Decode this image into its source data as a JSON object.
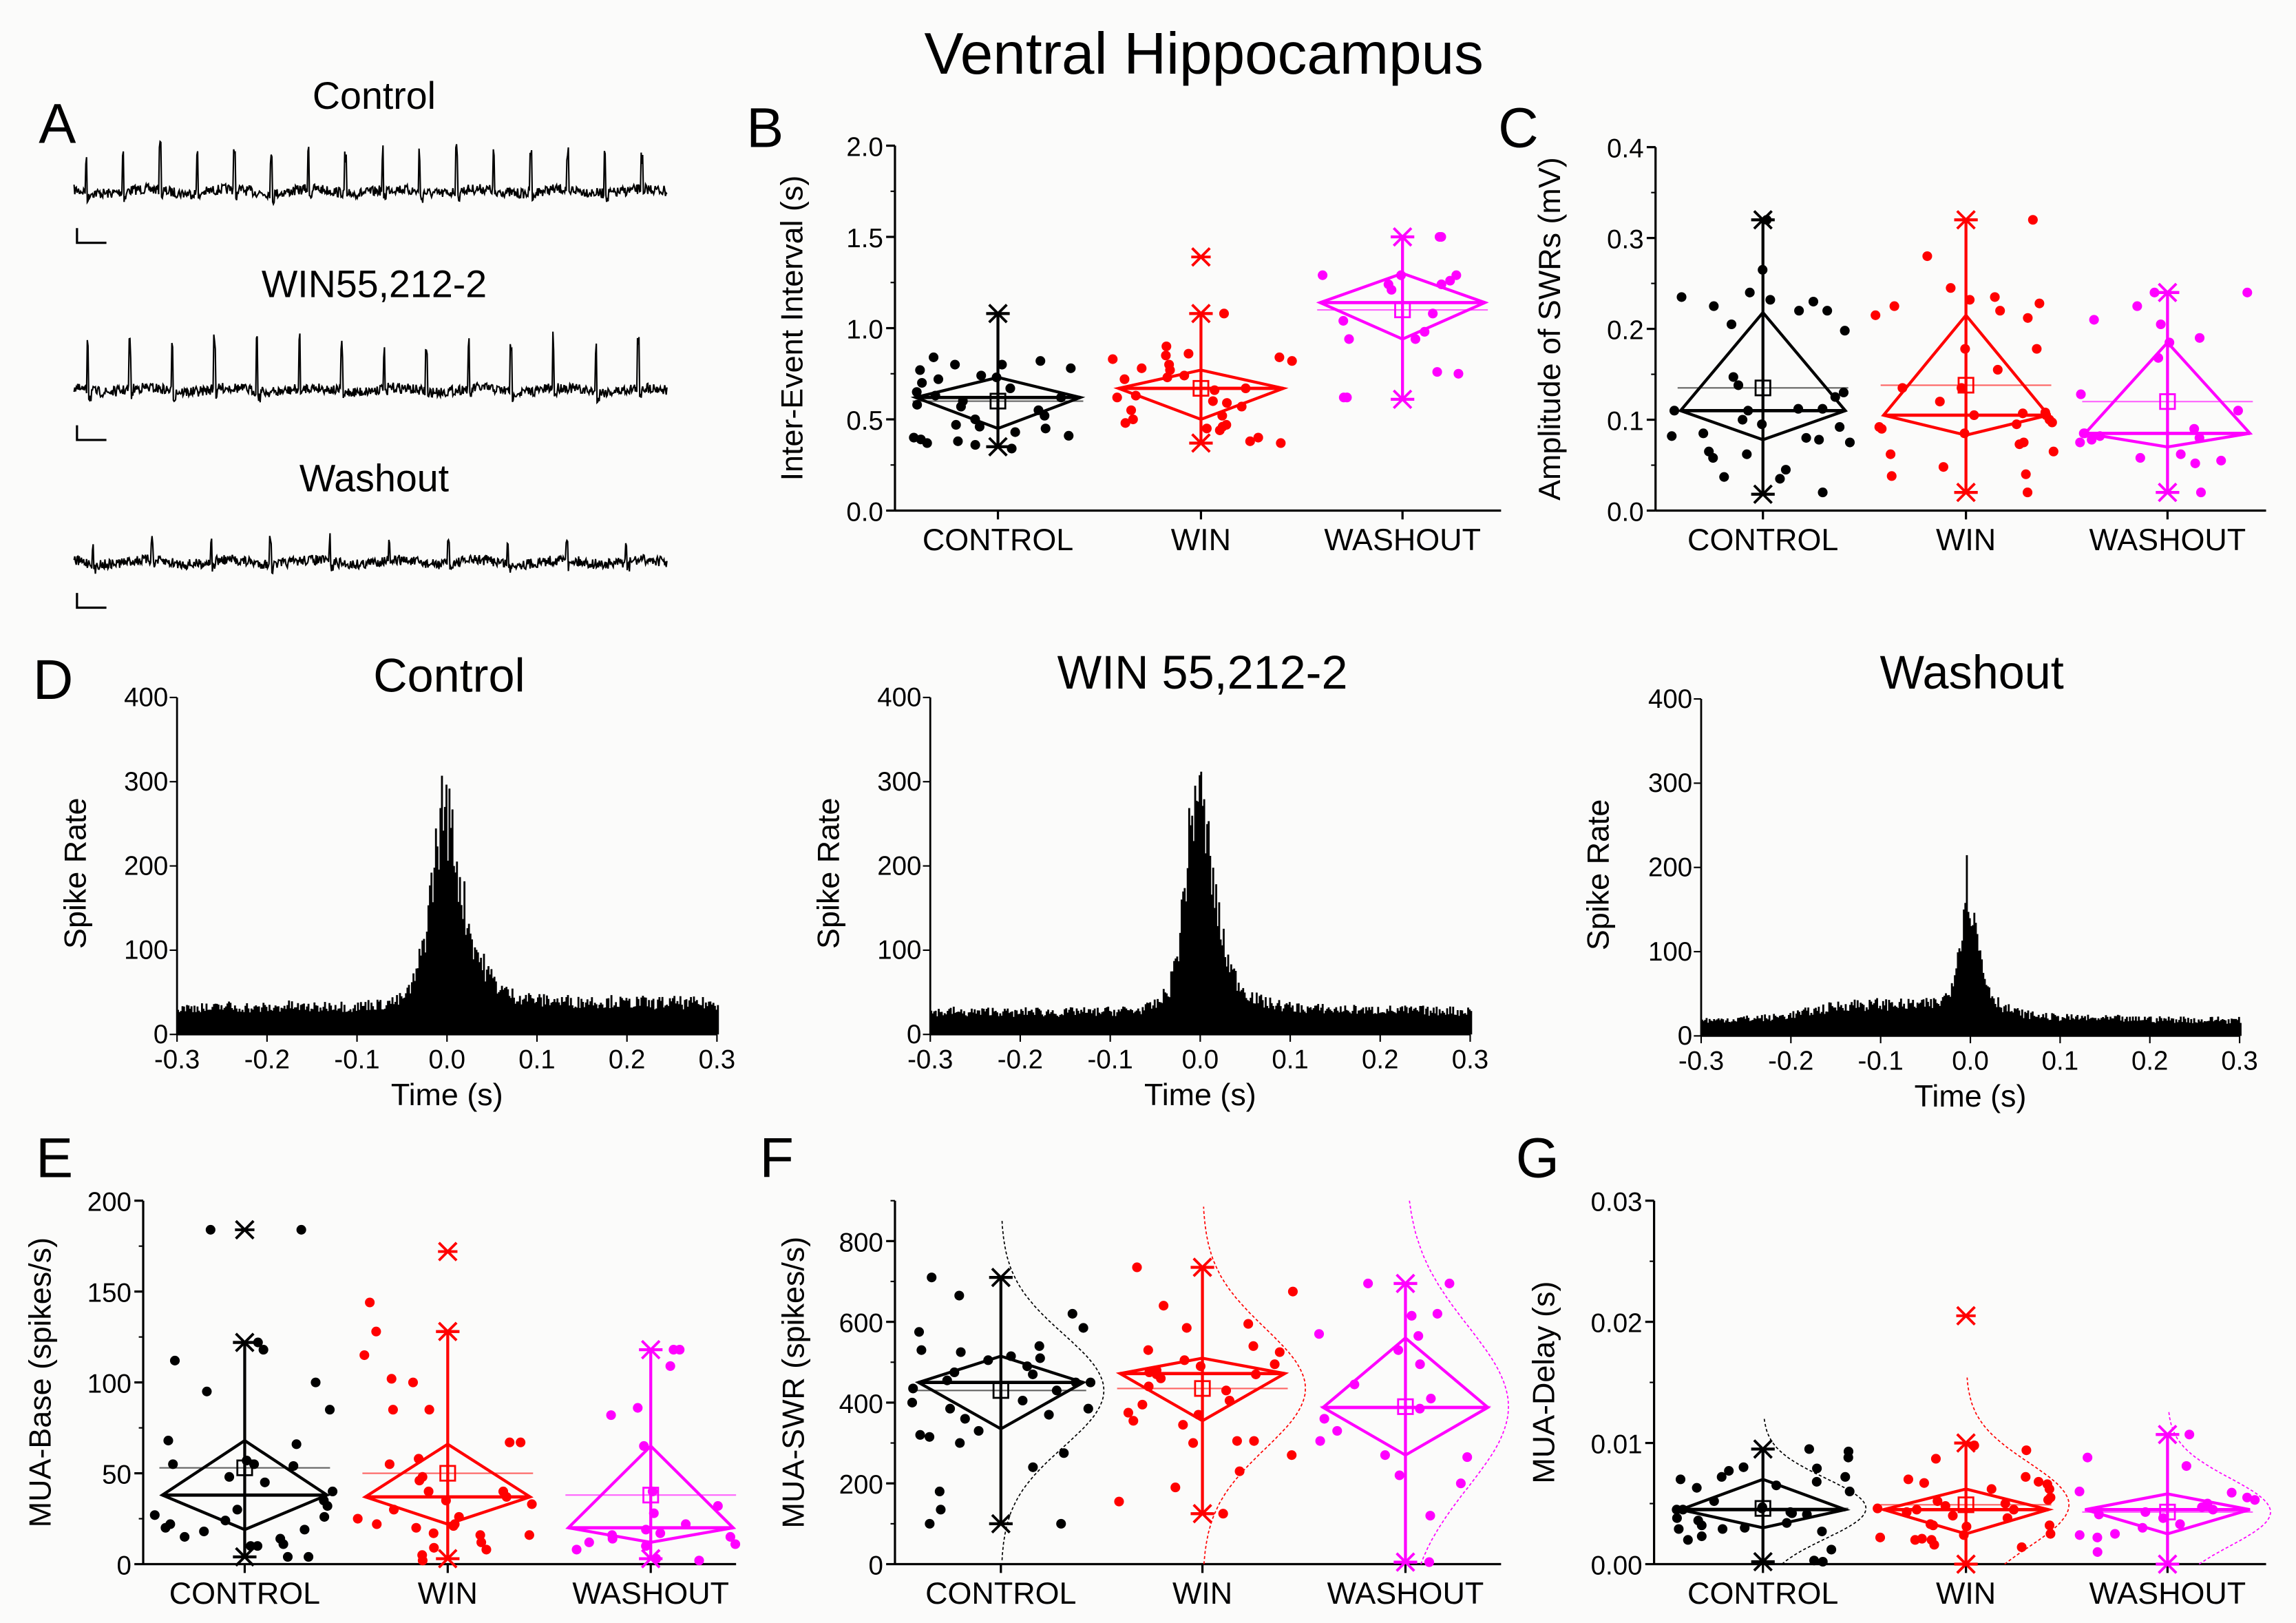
{
  "title": "Ventral Hippocampus",
  "colors": {
    "CONTROL": "#000000",
    "WIN": "#ff0000",
    "WASHOUT": "#ff00ff"
  },
  "panel_a": {
    "letter": "A",
    "traces": [
      "Control",
      "WIN55,212-2",
      "Washout"
    ]
  },
  "panel_d": {
    "letter": "D"
  },
  "chart_data": [
    {
      "id": "B",
      "letter": "B",
      "type": "box-scatter",
      "ylabel": "Inter-Event Interval (s)",
      "ylim": [
        0,
        2.0
      ],
      "yticks": [
        "0.0",
        "0.5",
        "1.0",
        "1.5",
        "2.0"
      ],
      "ytick_values": [
        0,
        0.5,
        1.0,
        1.5,
        2.0
      ],
      "yminor": 0.25,
      "categories": [
        "CONTROL",
        "WIN",
        "WASHOUT"
      ],
      "groups": [
        {
          "name": "CONTROL",
          "median": 0.62,
          "mean": 0.6,
          "q1": 0.45,
          "q3": 0.73,
          "min": 0.35,
          "max": 1.08,
          "outliers": [],
          "points": [
            0.77,
            0.74,
            0.72,
            0.84,
            0.8,
            0.82,
            0.78,
            0.7,
            0.73,
            0.67,
            0.62,
            0.63,
            0.57,
            0.58,
            0.55,
            0.5,
            0.47,
            0.46,
            0.45,
            0.4,
            0.38,
            0.39,
            0.36,
            0.37,
            0.34,
            0.6,
            0.65,
            0.52,
            0.43,
            0.41,
            0.8
          ]
        },
        {
          "name": "WIN",
          "median": 0.67,
          "mean": 0.67,
          "q1": 0.5,
          "q3": 0.77,
          "min": 0.37,
          "max": 1.08,
          "outliers": [
            1.39
          ],
          "points": [
            0.85,
            0.86,
            0.83,
            0.84,
            0.82,
            0.8,
            0.78,
            0.77,
            0.74,
            0.73,
            0.72,
            0.67,
            0.66,
            0.63,
            0.62,
            0.6,
            0.59,
            0.57,
            0.55,
            0.52,
            0.5,
            0.48,
            0.47,
            0.46,
            0.45,
            0.44,
            0.4,
            0.38,
            0.37,
            0.9,
            1.08
          ]
        },
        {
          "name": "WASHOUT",
          "median": 1.14,
          "mean": 1.1,
          "q1": 0.94,
          "q3": 1.3,
          "min": 0.61,
          "max": 1.5,
          "outliers": [],
          "points": [
            1.5,
            1.5,
            1.29,
            1.29,
            1.29,
            1.26,
            1.24,
            1.24,
            1.21,
            1.08,
            1.04,
            0.98,
            0.94,
            0.94,
            0.76,
            0.75,
            0.62,
            0.62
          ]
        }
      ]
    },
    {
      "id": "C",
      "letter": "C",
      "type": "box-scatter",
      "ylabel": "Amplitude of SWRs (mV)",
      "ylim": [
        0,
        0.4
      ],
      "yticks": [
        "0.0",
        "0.1",
        "0.2",
        "0.3",
        "0.4"
      ],
      "ytick_values": [
        0,
        0.1,
        0.2,
        0.3,
        0.4
      ],
      "yminor": 0.05,
      "categories": [
        "CONTROL",
        "WIN",
        "WASHOUT"
      ],
      "groups": [
        {
          "name": "CONTROL",
          "median": 0.11,
          "mean": 0.135,
          "q1": 0.078,
          "q3": 0.218,
          "min": 0.018,
          "max": 0.32,
          "outliers": [],
          "points": [
            0.32,
            0.265,
            0.24,
            0.235,
            0.232,
            0.23,
            0.225,
            0.22,
            0.22,
            0.205,
            0.198,
            0.147,
            0.138,
            0.13,
            0.125,
            0.112,
            0.112,
            0.11,
            0.11,
            0.1,
            0.095,
            0.092,
            0.082,
            0.08,
            0.078,
            0.075,
            0.085,
            0.062,
            0.065,
            0.058,
            0.045,
            0.037,
            0.035,
            0.02
          ]
        },
        {
          "name": "WIN",
          "median": 0.105,
          "mean": 0.138,
          "q1": 0.083,
          "q3": 0.215,
          "min": 0.02,
          "max": 0.32,
          "outliers": [],
          "points": [
            0.32,
            0.28,
            0.245,
            0.235,
            0.232,
            0.228,
            0.225,
            0.22,
            0.215,
            0.212,
            0.178,
            0.178,
            0.155,
            0.135,
            0.135,
            0.12,
            0.108,
            0.107,
            0.105,
            0.105,
            0.1,
            0.097,
            0.095,
            0.092,
            0.09,
            0.085,
            0.075,
            0.073,
            0.065,
            0.062,
            0.048,
            0.04,
            0.038,
            0.02
          ]
        },
        {
          "name": "WASHOUT",
          "median": 0.085,
          "mean": 0.12,
          "q1": 0.07,
          "q3": 0.185,
          "min": 0.02,
          "max": 0.24,
          "outliers": [],
          "points": [
            0.24,
            0.24,
            0.225,
            0.21,
            0.205,
            0.19,
            0.185,
            0.168,
            0.128,
            0.11,
            0.09,
            0.085,
            0.085,
            0.082,
            0.08,
            0.078,
            0.075,
            0.062,
            0.058,
            0.055,
            0.052,
            0.02
          ]
        }
      ]
    },
    {
      "id": "D1",
      "type": "bar",
      "subtitle": "Control",
      "xlabel": "Time (s)",
      "ylabel": "Spike Rate",
      "xlim": [
        -0.3,
        0.3
      ],
      "ylim": [
        0,
        400
      ],
      "bin_width": 0.01,
      "xticks": [
        "-0.3",
        "-0.2",
        "-0.1",
        "0.0",
        "0.1",
        "0.2",
        "0.3"
      ],
      "xtick_values": [
        -0.3,
        -0.2,
        -0.1,
        0,
        0.1,
        0.2,
        0.3
      ],
      "yticks": [
        "0",
        "100",
        "200",
        "300",
        "400"
      ],
      "ytick_values": [
        0,
        100,
        200,
        300,
        400
      ],
      "values": [
        30,
        32,
        31,
        33,
        30,
        32,
        34,
        31,
        33,
        30,
        32,
        31,
        33,
        34,
        32,
        33,
        31,
        34,
        35,
        33,
        32,
        34,
        36,
        35,
        38,
        40,
        48,
        70,
        120,
        200,
        278,
        235,
        170,
        120,
        90,
        72,
        58,
        50,
        45,
        44,
        42,
        40,
        41,
        39,
        40,
        38,
        40,
        39,
        38,
        40,
        37,
        38,
        39,
        36,
        38,
        37,
        39,
        36,
        38,
        37,
        36
      ]
    },
    {
      "id": "D2",
      "type": "bar",
      "subtitle": "WIN 55,212-2",
      "xlabel": "Time (s)",
      "ylabel": "Spike Rate",
      "xlim": [
        -0.3,
        0.3
      ],
      "ylim": [
        0,
        400
      ],
      "bin_width": 0.01,
      "xticks": [
        "-0.3",
        "-0.2",
        "-0.1",
        "0.0",
        "0.1",
        "0.2",
        "0.3"
      ],
      "xtick_values": [
        -0.3,
        -0.2,
        -0.1,
        0,
        0.1,
        0.2,
        0.3
      ],
      "yticks": [
        "0",
        "100",
        "200",
        "300",
        "400"
      ],
      "ytick_values": [
        0,
        100,
        200,
        300,
        400
      ],
      "values": [
        25,
        27,
        26,
        28,
        25,
        27,
        26,
        28,
        27,
        26,
        25,
        27,
        28,
        26,
        27,
        25,
        27,
        28,
        26,
        27,
        28,
        27,
        29,
        28,
        30,
        33,
        40,
        55,
        105,
        210,
        300,
        245,
        165,
        105,
        72,
        56,
        46,
        40,
        37,
        35,
        33,
        32,
        31,
        30,
        31,
        29,
        30,
        29,
        30,
        28,
        29,
        30,
        28,
        29,
        28,
        29,
        27,
        28,
        29,
        27,
        28
      ]
    },
    {
      "id": "D3",
      "type": "bar",
      "subtitle": "Washout",
      "xlabel": "Time (s)",
      "ylabel": "Spike Rate",
      "xlim": [
        -0.3,
        0.3
      ],
      "ylim": [
        0,
        400
      ],
      "bin_width": 0.01,
      "xticks": [
        "-0.3",
        "-0.2",
        "-0.1",
        "0.0",
        "0.1",
        "0.2",
        "0.3"
      ],
      "xtick_values": [
        -0.3,
        -0.2,
        -0.1,
        0,
        0.1,
        0.2,
        0.3
      ],
      "yticks": [
        "0",
        "100",
        "200",
        "300",
        "400"
      ],
      "ytick_values": [
        0,
        100,
        200,
        300,
        400
      ],
      "values": [
        18,
        19,
        18,
        20,
        19,
        21,
        20,
        22,
        21,
        23,
        24,
        26,
        28,
        30,
        32,
        34,
        36,
        37,
        38,
        36,
        38,
        37,
        39,
        36,
        38,
        37,
        38,
        40,
        50,
        95,
        185,
        125,
        70,
        45,
        35,
        30,
        27,
        25,
        24,
        23,
        22,
        22,
        21,
        22,
        20,
        21,
        20,
        21,
        19,
        20,
        21,
        19,
        20,
        19,
        20,
        19,
        18,
        19,
        20,
        18,
        19
      ]
    },
    {
      "id": "E",
      "letter": "E",
      "type": "box-scatter",
      "ylabel": "MUA-Base (spikes/s)",
      "ylim": [
        0,
        200
      ],
      "yticks": [
        "0",
        "50",
        "100",
        "150",
        "200"
      ],
      "ytick_values": [
        0,
        50,
        100,
        150,
        200
      ],
      "yminor": 25,
      "categories": [
        "CONTROL",
        "WIN",
        "WASHOUT"
      ],
      "groups": [
        {
          "name": "CONTROL",
          "median": 38,
          "mean": 53,
          "q1": 19,
          "q3": 68,
          "min": 4,
          "max": 122,
          "outliers": [
            184
          ],
          "points": [
            184,
            184,
            122,
            118,
            112,
            100,
            95,
            85,
            68,
            66,
            57,
            55,
            55,
            54,
            48,
            45,
            40,
            35,
            32,
            30,
            27,
            26,
            24,
            22,
            20,
            19,
            18,
            15,
            14,
            11,
            10,
            10,
            4,
            4
          ]
        },
        {
          "name": "WIN",
          "median": 37,
          "mean": 50,
          "q1": 22,
          "q3": 66,
          "min": 3,
          "max": 128,
          "outliers": [
            172
          ],
          "points": [
            144,
            128,
            115,
            102,
            100,
            85,
            85,
            67,
            67,
            58,
            55,
            48,
            46,
            40,
            40,
            37,
            35,
            33,
            30,
            26,
            25,
            22,
            22,
            21,
            20,
            17,
            16,
            16,
            12,
            9,
            8,
            5,
            2
          ]
        },
        {
          "name": "WASHOUT",
          "median": 20,
          "mean": 38,
          "q1": 12,
          "q3": 65,
          "min": 3,
          "max": 118,
          "outliers": [],
          "points": [
            118,
            118,
            109,
            86,
            82,
            65,
            40,
            32,
            28,
            22,
            19,
            17,
            16,
            15,
            14,
            12,
            11,
            10,
            8,
            3,
            2
          ]
        }
      ]
    },
    {
      "id": "F",
      "letter": "F",
      "type": "box-scatter",
      "ylabel": "MUA-SWR (spikes/s)",
      "ylim": [
        0,
        900
      ],
      "yticks": [
        "0",
        "200",
        "400",
        "600",
        "800"
      ],
      "ytick_values": [
        0,
        200,
        400,
        600,
        800
      ],
      "yminor": 100,
      "categories": [
        "CONTROL",
        "WIN",
        "WASHOUT"
      ],
      "normal_curve": true,
      "groups": [
        {
          "name": "CONTROL",
          "median": 450,
          "mean": 430,
          "q1": 335,
          "q3": 515,
          "min": 100,
          "max": 710,
          "outliers": [],
          "sd": 140,
          "points": [
            710,
            665,
            620,
            585,
            575,
            540,
            530,
            525,
            515,
            510,
            505,
            490,
            475,
            470,
            455,
            450,
            450,
            435,
            430,
            405,
            400,
            385,
            385,
            370,
            360,
            330,
            320,
            315,
            300,
            275,
            240,
            180,
            135,
            100,
            100
          ]
        },
        {
          "name": "WIN",
          "median": 472,
          "mean": 435,
          "q1": 355,
          "q3": 510,
          "min": 125,
          "max": 735,
          "outliers": [],
          "sd": 150,
          "points": [
            735,
            675,
            640,
            595,
            585,
            540,
            530,
            525,
            505,
            495,
            490,
            480,
            475,
            470,
            470,
            460,
            440,
            430,
            405,
            395,
            375,
            370,
            355,
            345,
            305,
            305,
            300,
            270,
            230,
            190,
            155,
            125
          ]
        },
        {
          "name": "WASHOUT",
          "median": 388,
          "mean": 390,
          "q1": 270,
          "q3": 560,
          "min": 5,
          "max": 695,
          "outliers": [],
          "sd": 200,
          "points": [
            695,
            695,
            620,
            615,
            570,
            565,
            530,
            495,
            445,
            410,
            385,
            360,
            330,
            305,
            270,
            265,
            220,
            200,
            120,
            5
          ]
        }
      ]
    },
    {
      "id": "G",
      "letter": "G",
      "type": "box-scatter",
      "ylabel": "MUA-Delay (s)",
      "ylim": [
        0,
        0.03
      ],
      "yticks": [
        "0.00",
        "0.01",
        "0.02",
        "0.03"
      ],
      "ytick_values": [
        0,
        0.01,
        0.02,
        0.03
      ],
      "yminor": 0.005,
      "categories": [
        "CONTROL",
        "WIN",
        "WASHOUT"
      ],
      "normal_curve": true,
      "groups": [
        {
          "name": "CONTROL",
          "median": 0.0045,
          "mean": 0.0046,
          "q1": 0.003,
          "q3": 0.007,
          "min": 0.0002,
          "max": 0.0095,
          "outliers": [],
          "sd": 0.0025,
          "points": [
            0.0095,
            0.0093,
            0.0088,
            0.008,
            0.0079,
            0.0077,
            0.0072,
            0.0072,
            0.007,
            0.0068,
            0.0065,
            0.0063,
            0.006,
            0.0052,
            0.0047,
            0.0046,
            0.0045,
            0.0045,
            0.0043,
            0.0042,
            0.0041,
            0.0038,
            0.0036,
            0.0034,
            0.0032,
            0.003,
            0.0029,
            0.0029,
            0.0027,
            0.0023,
            0.002,
            0.0012,
            0.0003,
            0.0002
          ]
        },
        {
          "name": "WIN",
          "median": 0.0045,
          "mean": 0.0049,
          "q1": 0.0025,
          "q3": 0.0062,
          "min": 0.0,
          "max": 0.01,
          "outliers": [
            0.0205
          ],
          "sd": 0.0035,
          "points": [
            0.0098,
            0.0094,
            0.0087,
            0.0072,
            0.007,
            0.0068,
            0.0067,
            0.0066,
            0.0062,
            0.0062,
            0.0055,
            0.0053,
            0.0052,
            0.005,
            0.0048,
            0.0046,
            0.0045,
            0.0045,
            0.0043,
            0.004,
            0.0038,
            0.0033,
            0.0032,
            0.0032,
            0.0031,
            0.0025,
            0.0024,
            0.0022,
            0.0021,
            0.002,
            0.002,
            0.0016,
            0.0014
          ]
        },
        {
          "name": "WASHOUT",
          "median": 0.0045,
          "mean": 0.0043,
          "q1": 0.0025,
          "q3": 0.0058,
          "min": 0.0,
          "max": 0.0107,
          "outliers": [],
          "sd": 0.0028,
          "points": [
            0.0107,
            0.0088,
            0.0081,
            0.006,
            0.0059,
            0.0055,
            0.0053,
            0.005,
            0.0047,
            0.0045,
            0.0043,
            0.0041,
            0.0038,
            0.0033,
            0.003,
            0.0025,
            0.0024,
            0.0022,
            0.001
          ]
        }
      ]
    }
  ]
}
